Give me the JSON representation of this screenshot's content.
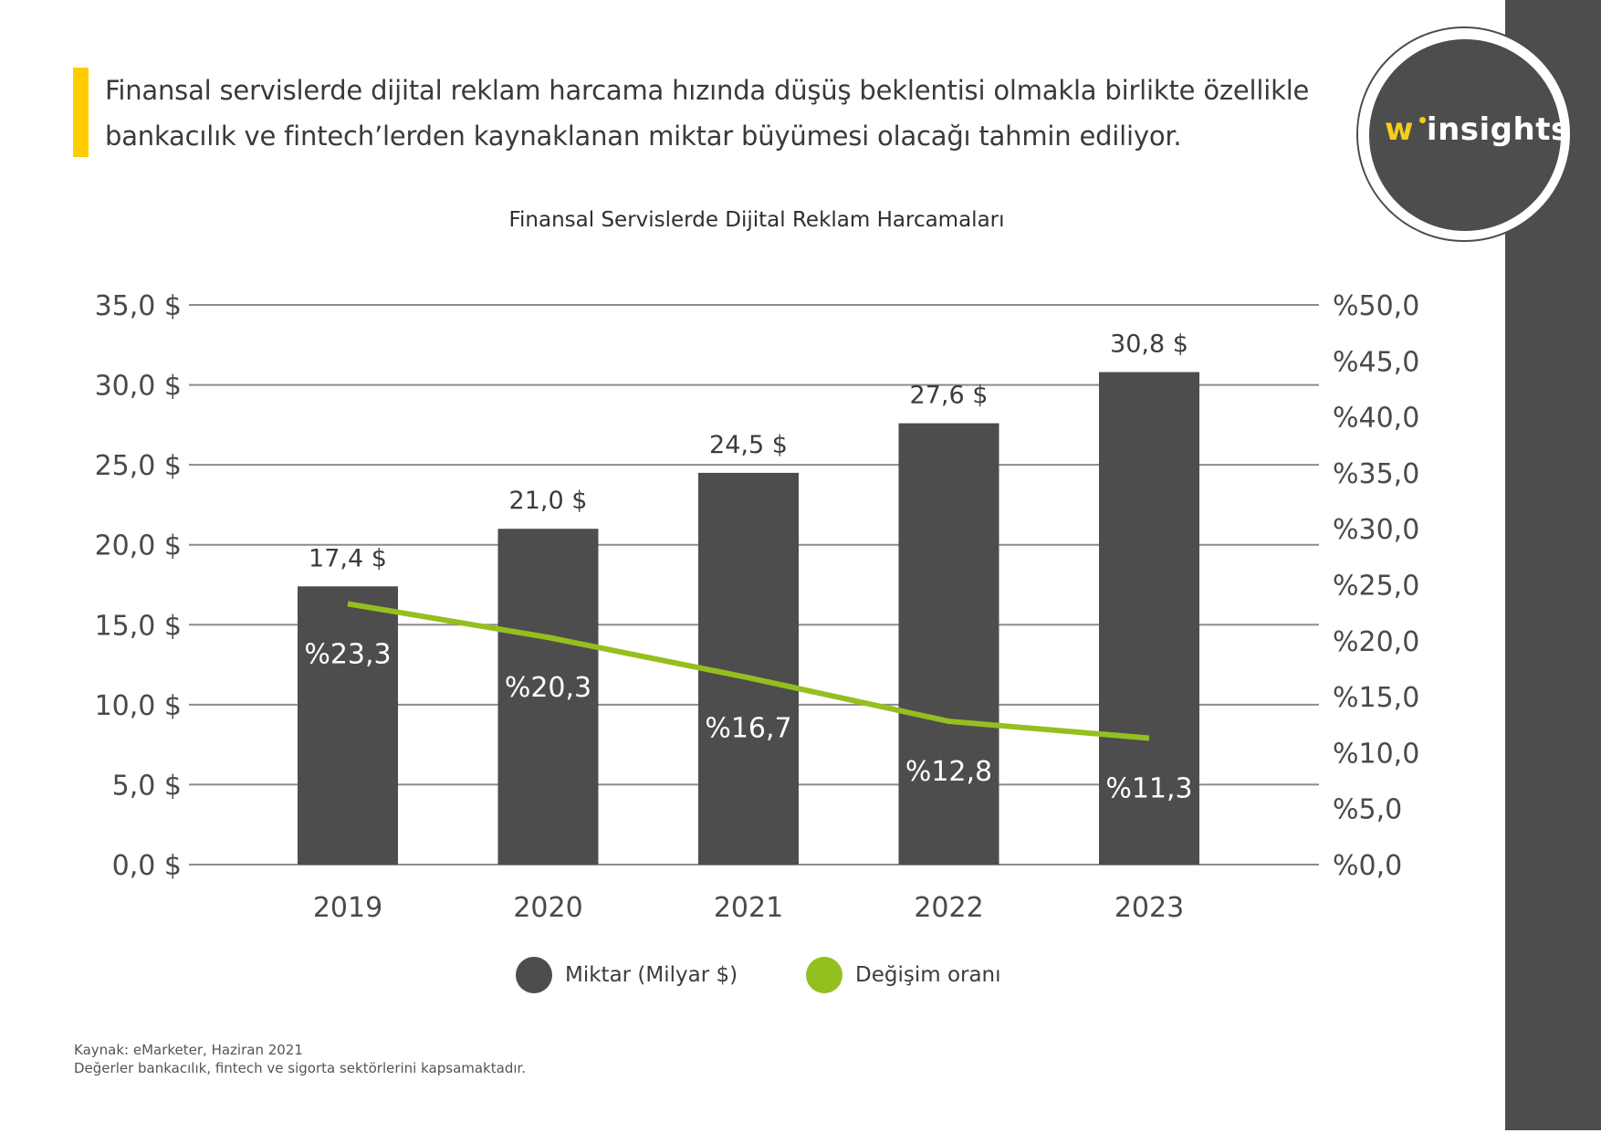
{
  "colors": {
    "accent": "#ffcc00",
    "bar": "#4d4d4d",
    "line": "#93c01f",
    "grid": "#8c8c8c",
    "side_band": "#4d4d4d"
  },
  "header": {
    "headline_lines": [
      "Finansal servislerde dijital reklam harcama hızında düşüş beklentisi olmakla birlikte özellikle",
      "bankacılık ve fintech’lerden kaynaklanan miktar büyümesi olacağı tahmin ediliyor."
    ]
  },
  "logo": {
    "prefix": "w",
    "name": "insights"
  },
  "chart_data": {
    "type": "bar",
    "title": "Finansal Servislerde Dijital Reklam Harcamaları",
    "categories": [
      "2019",
      "2020",
      "2021",
      "2022",
      "2023"
    ],
    "series": [
      {
        "name": "Miktar (Milyar $)",
        "type": "bar",
        "axis": "left",
        "values": [
          17.4,
          21.0,
          24.5,
          27.6,
          30.8
        ],
        "labels": [
          "17,4 $",
          "21,0 $",
          "24,5 $",
          "27,6 $",
          "30,8 $"
        ]
      },
      {
        "name": "Değişim oranı",
        "type": "line",
        "axis": "right",
        "values": [
          23.3,
          20.3,
          16.7,
          12.8,
          11.3
        ],
        "labels": [
          "%23,3",
          "%20,3",
          "%16,7",
          "%12,8",
          "%11,3"
        ]
      }
    ],
    "left_axis": {
      "ylim": [
        0,
        35
      ],
      "ticks": [
        0,
        5,
        10,
        15,
        20,
        25,
        30,
        35
      ],
      "tick_labels": [
        "0,0 $",
        "5,0 $",
        "10,0 $",
        "15,0 $",
        "20,0 $",
        "25,0 $",
        "30,0 $",
        "35,0 $"
      ]
    },
    "right_axis": {
      "ylim": [
        0,
        50
      ],
      "ticks": [
        0,
        5,
        10,
        15,
        20,
        25,
        30,
        35,
        40,
        45,
        50
      ],
      "tick_labels": [
        "%0,0",
        "%5,0",
        "%10,0",
        "%15,0",
        "%20,0",
        "%25,0",
        "%30,0",
        "%35,0",
        "%40,0",
        "%45,0",
        "%50,0"
      ]
    },
    "grid": true,
    "legend_position": "bottom-center",
    "xlabel": "",
    "ylabel": ""
  },
  "legend": {
    "items": [
      {
        "label": "Miktar (Milyar $)"
      },
      {
        "label": "Değişim oranı"
      }
    ]
  },
  "footer": {
    "source": "Kaynak: eMarketer, Haziran 2021",
    "note": "Değerler bankacılık, fintech ve sigorta sektörlerini kapsamaktadır."
  }
}
